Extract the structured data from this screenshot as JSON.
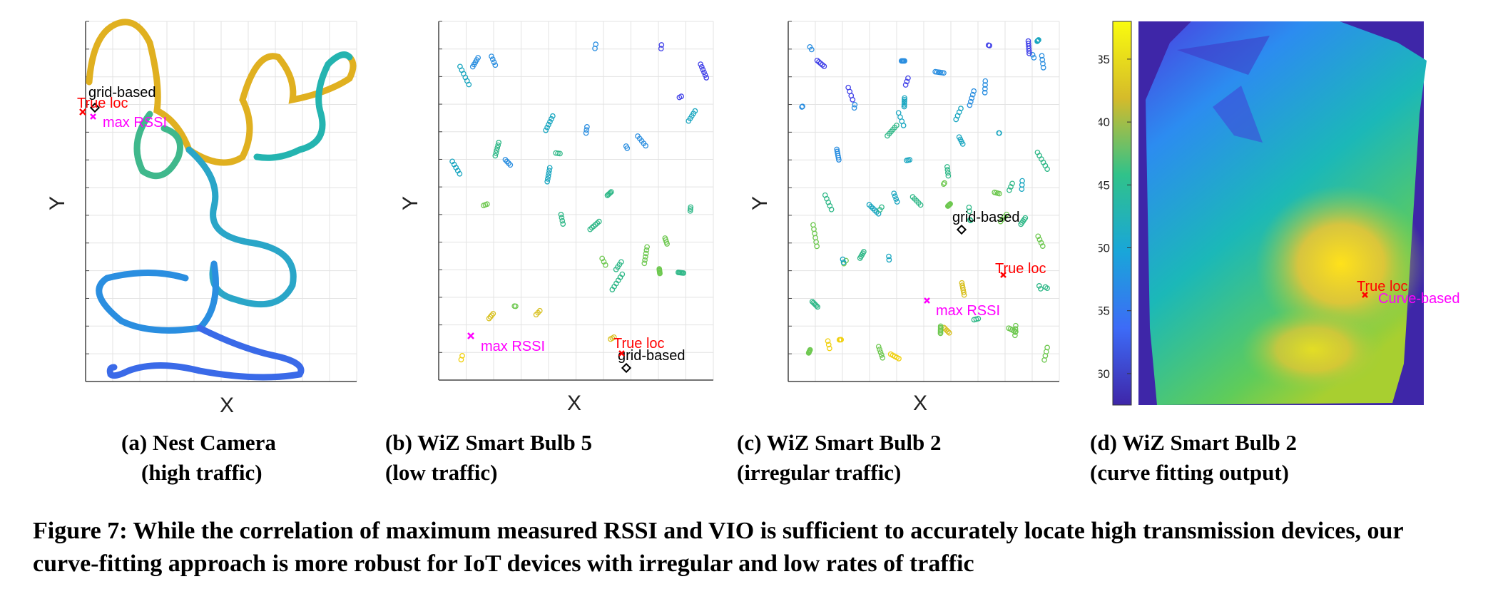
{
  "panels": [
    {
      "id": "a",
      "xlabel": "X",
      "ylabel": "Y",
      "caption_line1": "(a) Nest Camera",
      "caption_line2": "(high traffic)",
      "annotations": {
        "grid": "grid-based",
        "true": "True loc",
        "max": "max RSSI"
      }
    },
    {
      "id": "b",
      "xlabel": "X",
      "ylabel": "Y",
      "caption_line1": "(b) WiZ Smart Bulb 5",
      "caption_line2": "(low traffic)",
      "annotations": {
        "grid": "grid-based",
        "true": "True loc",
        "max": "max RSSI"
      }
    },
    {
      "id": "c",
      "xlabel": "X",
      "ylabel": "Y",
      "caption_line1": "(c) WiZ Smart Bulb 2",
      "caption_line2": "(irregular traffic)",
      "annotations": {
        "grid": "grid-based",
        "true": "True loc",
        "max": "max RSSI"
      }
    },
    {
      "id": "d",
      "caption_line1": "(d) WiZ Smart Bulb 2",
      "caption_line2": "(curve fitting output)",
      "annotations": {
        "true": "True loc",
        "curve": "Curve-based"
      }
    }
  ],
  "colorbar": {
    "ticks": [
      "-35",
      "-40",
      "-45",
      "-50",
      "-55",
      "-60"
    ],
    "range": [
      -62.5,
      -32
    ]
  },
  "caption": "Figure 7: While the correlation of maximum measured RSSI and VIO is sufficient to accurately locate high transmission devices, our curve-fitting approach is more robust for IoT devices with irregular and low rates of traffic",
  "colors": {
    "true_loc": "#ff0000",
    "max_rssi": "#ff00ff",
    "grid_based": "#000000"
  }
}
